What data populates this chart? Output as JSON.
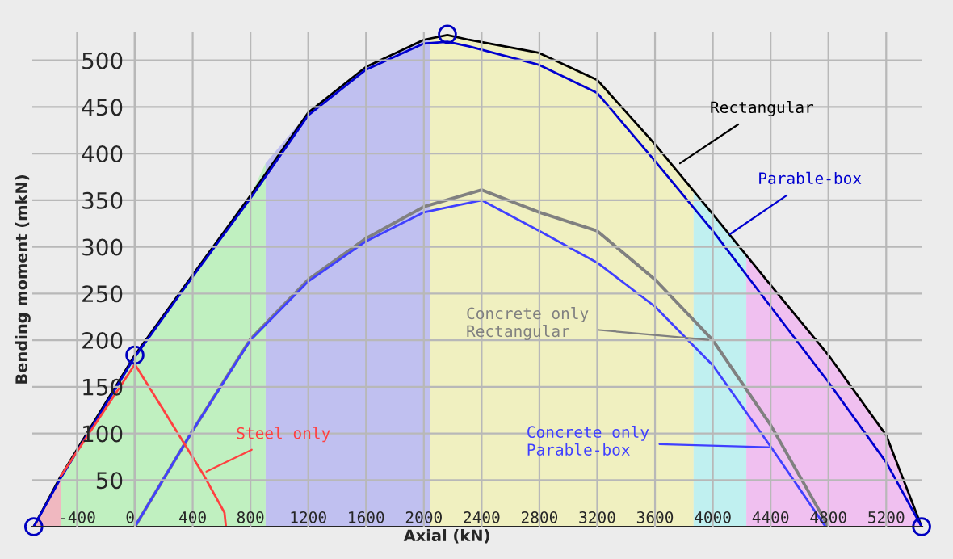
{
  "chart_data": {
    "type": "line",
    "xlabel": "Axial (kN)",
    "ylabel": "Bending moment (mkN)",
    "xlim": [
      -710,
      5450
    ],
    "ylim": [
      0,
      530
    ],
    "xticks": [
      -400,
      0,
      400,
      800,
      1200,
      1600,
      2000,
      2400,
      2800,
      3200,
      3600,
      4000,
      4400,
      4800,
      5200
    ],
    "yticks": [
      50,
      100,
      150,
      200,
      250,
      300,
      350,
      400,
      450,
      500
    ],
    "grid": true,
    "line_style": "solid",
    "series": [
      {
        "color": "#000000",
        "x": [
          -700,
          -514,
          0,
          400,
          800,
          1200,
          1600,
          2000,
          2163,
          2312,
          2797,
          3200,
          3600,
          4000,
          4400,
          4800,
          5200,
          5445
        ],
        "values": [
          0,
          54,
          184,
          270,
          355,
          444,
          493,
          522,
          527,
          522,
          508,
          479,
          410,
          335,
          259,
          184,
          98,
          0
        ]
      },
      {
        "color": "#0000d0",
        "x": [
          -700,
          -514,
          0,
          400,
          800,
          1200,
          1600,
          2000,
          2163,
          2312,
          2800,
          3200,
          3600,
          4000,
          4400,
          4800,
          5200,
          5445
        ],
        "values": [
          0,
          52,
          182,
          268,
          352,
          441,
          490,
          518,
          520,
          515,
          495,
          465,
          392,
          317,
          236,
          155,
          69,
          0
        ]
      },
      {
        "color": "#808080",
        "x": [
          0,
          400,
          800,
          1200,
          1600,
          2000,
          2400,
          2800,
          3200,
          3600,
          4000,
          4400,
          4800
        ],
        "values": [
          0,
          103,
          201,
          265,
          309,
          343,
          361,
          337,
          317,
          265,
          200,
          109,
          0
        ]
      },
      {
        "color": "#4040ff",
        "x": [
          0,
          400,
          800,
          1200,
          1600,
          2000,
          2400,
          2800,
          3200,
          3600,
          4000,
          4400,
          4780
        ],
        "values": [
          0,
          103,
          200,
          263,
          306,
          337,
          350,
          317,
          283,
          236,
          173,
          86,
          0
        ]
      },
      {
        "color": "#ff4040",
        "x": [
          -514,
          0,
          190,
          470,
          620,
          630
        ],
        "values": [
          54,
          174,
          127,
          57,
          15,
          0
        ]
      },
      {
        "type": "scatter",
        "color": "#0000c0",
        "marker": "circle",
        "x": [
          -700,
          0,
          2163,
          5445
        ],
        "values": [
          0,
          184,
          528,
          0
        ]
      },
      {
        "type": "area",
        "color": "#f0b8c0",
        "x": [
          -700,
          -514
        ],
        "values": [
          0,
          54
        ]
      },
      {
        "type": "area",
        "color": "#c0f0c0",
        "x": [
          -514,
          0,
          400,
          800,
          905
        ],
        "values": [
          54,
          184,
          270,
          355,
          390
        ]
      },
      {
        "type": "area",
        "color": "#c0c0f0",
        "x": [
          905,
          1200,
          1600,
          2000,
          2044
        ],
        "values": [
          390,
          444,
          493,
          522,
          524
        ]
      },
      {
        "type": "area",
        "color": "#f0f0c0",
        "x": [
          2044,
          2163,
          2312,
          2797,
          3200,
          3600,
          3867
        ],
        "values": [
          524,
          527,
          522,
          508,
          479,
          410,
          360
        ]
      },
      {
        "type": "area",
        "color": "#c0f0f0",
        "x": [
          3867,
          4000,
          4232
        ],
        "values": [
          360,
          335,
          291
        ]
      },
      {
        "type": "area",
        "color": "#f0c0f0",
        "x": [
          4232,
          4400,
          4800,
          5200,
          5445
        ],
        "values": [
          291,
          259,
          184,
          98,
          0
        ]
      }
    ],
    "annotations": [
      {
        "text": "Rectangular",
        "x": 3747,
        "y": 387
      },
      {
        "text": "Parable-box",
        "x": 4094,
        "y": 311
      },
      {
        "text": "Concrete only\nRectangular",
        "x": 4000,
        "y": 200
      },
      {
        "text": "Concrete only\nParable-box",
        "x": 4418,
        "y": 85
      },
      {
        "text": "Steel only",
        "x": 467,
        "y": 57
      }
    ]
  }
}
